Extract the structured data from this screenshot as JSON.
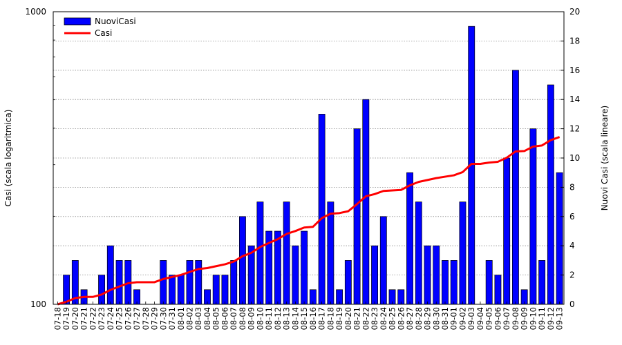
{
  "chart_data": {
    "type": "bar",
    "categories": [
      "07-18",
      "07-19",
      "07-20",
      "07-21",
      "07-22",
      "07-23",
      "07-24",
      "07-25",
      "07-26",
      "07-27",
      "07-28",
      "07-29",
      "07-30",
      "07-31",
      "08-01",
      "08-02",
      "08-03",
      "08-04",
      "08-05",
      "08-06",
      "08-07",
      "08-08",
      "08-09",
      "08-10",
      "08-11",
      "08-12",
      "08-13",
      "08-14",
      "08-15",
      "08-16",
      "08-17",
      "08-18",
      "08-19",
      "08-20",
      "08-21",
      "08-22",
      "08-23",
      "08-24",
      "08-25",
      "08-26",
      "08-27",
      "08-28",
      "08-29",
      "08-30",
      "08-31",
      "09-01",
      "09-02",
      "09-03",
      "09-04",
      "09-05",
      "09-06",
      "09-07",
      "09-08",
      "09-09",
      "09-10",
      "09-11",
      "09-12",
      "09-13"
    ],
    "series": [
      {
        "name": "NuoviCasi",
        "type": "bar",
        "axis": "right",
        "color": "#0000ff",
        "values": [
          0,
          2,
          3,
          1,
          0,
          2,
          4,
          3,
          3,
          1,
          0,
          0,
          3,
          2,
          2,
          3,
          3,
          1,
          2,
          2,
          3,
          6,
          4,
          7,
          5,
          5,
          7,
          4,
          5,
          1,
          13,
          7,
          1,
          3,
          12,
          14,
          4,
          6,
          1,
          1,
          9,
          7,
          4,
          4,
          3,
          3,
          7,
          19,
          0,
          3,
          2,
          10,
          16,
          1,
          12,
          3,
          15,
          9
        ]
      },
      {
        "name": "Casi",
        "type": "line",
        "axis": "left",
        "color": "#ff0000",
        "values": [
          100,
          102,
          105,
          106,
          106,
          108,
          112,
          115,
          118,
          119,
          119,
          119,
          122,
          124,
          126,
          129,
          132,
          133,
          135,
          137,
          140,
          146,
          150,
          157,
          162,
          167,
          174,
          178,
          183,
          184,
          197,
          204,
          205,
          208,
          220,
          234,
          238,
          244,
          245,
          246,
          255,
          262,
          266,
          270,
          273,
          276,
          283,
          302,
          302,
          305,
          307,
          317,
          333,
          334,
          346,
          349,
          364,
          373
        ]
      }
    ],
    "ylabel": "Casi (scala logaritmica)",
    "y2label": "Nuovi Casi (scala lineare)",
    "ylim": [
      100,
      1000
    ],
    "yscale": "log",
    "y2lim": [
      0,
      20
    ],
    "yticks": [
      "100",
      "1000"
    ],
    "y2ticks": [
      "0",
      "2",
      "4",
      "6",
      "8",
      "10",
      "12",
      "14",
      "16",
      "18",
      "20"
    ],
    "grid": "horizontal dotted",
    "legend": "top-left",
    "legend_items": [
      "NuoviCasi",
      "Casi"
    ]
  }
}
